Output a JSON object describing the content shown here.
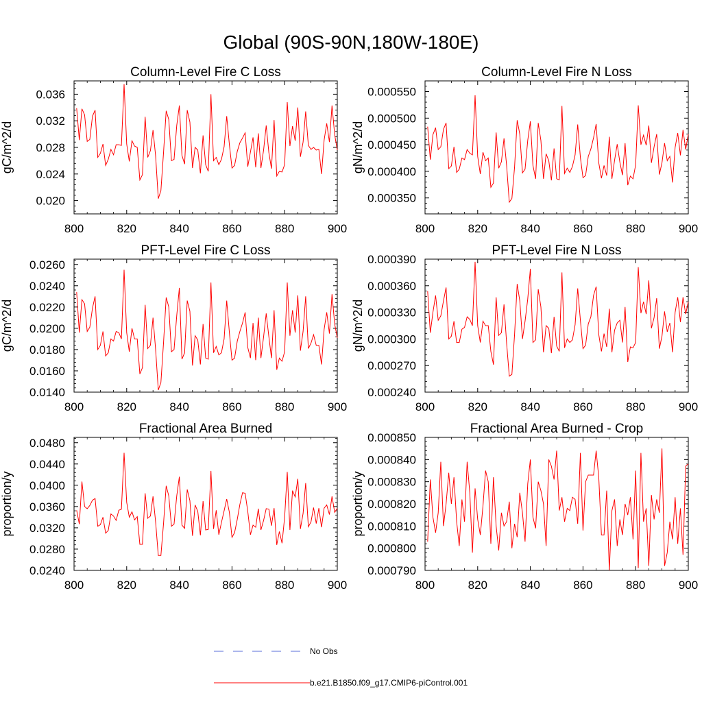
{
  "page_title": "Global (90S-90N,180W-180E)",
  "legend": {
    "items": [
      {
        "label": "No Obs",
        "color": "#5a6ed8",
        "style": "dashed"
      },
      {
        "label": "b.e21.B1850.f09_g17.CMIP6-piControl.001",
        "color": "#ff0000",
        "style": "solid"
      }
    ]
  },
  "chart_data": [
    {
      "type": "line",
      "title": "Column-Level Fire C Loss",
      "xlabel": "",
      "ylabel": "gC/m^2/d",
      "xlim": [
        800,
        900
      ],
      "ylim": [
        0.018,
        0.038
      ],
      "xticks": [
        800,
        820,
        840,
        860,
        880,
        900
      ],
      "xtick_labels": [
        "800",
        "820",
        "840",
        "860",
        "880",
        "900"
      ],
      "yticks": [
        0.02,
        0.024,
        0.028,
        0.032,
        0.036
      ],
      "ytick_labels": [
        "0.020",
        "0.024",
        "0.028",
        "0.032",
        "0.036"
      ],
      "series": [
        {
          "name": "b.e21.B1850.f09_g17.CMIP6-piControl.001",
          "color": "#ff0000",
          "x_start": 801,
          "values": [
            0.0339,
            0.0291,
            0.0338,
            0.0329,
            0.0289,
            0.0292,
            0.0327,
            0.0336,
            0.0265,
            0.0271,
            0.0285,
            0.0253,
            0.0262,
            0.0277,
            0.0269,
            0.0284,
            0.0284,
            0.0283,
            0.0375,
            0.0285,
            0.0259,
            0.029,
            0.0282,
            0.028,
            0.0231,
            0.0239,
            0.0326,
            0.0265,
            0.0275,
            0.0306,
            0.0267,
            0.0203,
            0.0215,
            0.0273,
            0.0335,
            0.0322,
            0.026,
            0.0262,
            0.0313,
            0.0343,
            0.0268,
            0.0255,
            0.0336,
            0.0318,
            0.0249,
            0.028,
            0.0276,
            0.0241,
            0.0298,
            0.0254,
            0.0244,
            0.036,
            0.026,
            0.0265,
            0.0254,
            0.0262,
            0.0281,
            0.0327,
            0.0284,
            0.0249,
            0.0253,
            0.0274,
            0.0287,
            0.0294,
            0.0302,
            0.0251,
            0.0273,
            0.0295,
            0.025,
            0.0301,
            0.0249,
            0.0276,
            0.0313,
            0.0272,
            0.0248,
            0.0321,
            0.0237,
            0.0244,
            0.0243,
            0.0254,
            0.0348,
            0.0282,
            0.0312,
            0.029,
            0.034,
            0.0266,
            0.0288,
            0.0334,
            0.0283,
            0.0277,
            0.028,
            0.0276,
            0.0277,
            0.024,
            0.0291,
            0.0316,
            0.0288,
            0.0343,
            0.0299,
            0.0276
          ]
        }
      ]
    },
    {
      "type": "line",
      "title": "Column-Level Fire N Loss",
      "xlabel": "",
      "ylabel": "gN/m^2/d",
      "xlim": [
        800,
        900
      ],
      "ylim": [
        0.00032,
        0.00057
      ],
      "xticks": [
        800,
        820,
        840,
        860,
        880,
        900
      ],
      "xtick_labels": [
        "800",
        "820",
        "840",
        "860",
        "880",
        "900"
      ],
      "yticks": [
        0.00035,
        0.0004,
        0.00045,
        0.0005,
        0.00055
      ],
      "ytick_labels": [
        "0.000350",
        "0.000400",
        "0.000450",
        "0.000500",
        "0.000550"
      ],
      "series": [
        {
          "name": "b.e21.B1850.f09_g17.CMIP6-piControl.001",
          "color": "#ff0000",
          "x_start": 801,
          "values": [
            0.000484,
            0.000422,
            0.000469,
            0.000482,
            0.000441,
            0.000446,
            0.000479,
            0.000491,
            0.000405,
            0.00041,
            0.000446,
            0.000398,
            0.000404,
            0.000425,
            0.000422,
            0.000441,
            0.000434,
            0.000431,
            0.000543,
            0.000428,
            0.000395,
            0.000436,
            0.00042,
            0.000425,
            0.00037,
            0.000378,
            0.000473,
            0.000406,
            0.000418,
            0.000462,
            0.000411,
            0.000342,
            0.000349,
            0.000408,
            0.000496,
            0.00047,
            0.000397,
            0.000404,
            0.000458,
            0.000494,
            0.000411,
            0.000386,
            0.000491,
            0.000458,
            0.000386,
            0.000433,
            0.00042,
            0.000383,
            0.000443,
            0.000386,
            0.000384,
            0.000523,
            0.000396,
            0.000406,
            0.000398,
            0.000409,
            0.000431,
            0.000488,
            0.000426,
            0.000388,
            0.000392,
            0.000428,
            0.000442,
            0.000463,
            0.000489,
            0.000416,
            0.000387,
            0.000411,
            0.000392,
            0.000465,
            0.000386,
            0.000421,
            0.000451,
            0.000417,
            0.000393,
            0.000453,
            0.000374,
            0.000391,
            0.000386,
            0.000412,
            0.000524,
            0.00045,
            0.000468,
            0.000449,
            0.000486,
            0.000416,
            0.000446,
            0.00047,
            0.000394,
            0.000416,
            0.000453,
            0.00042,
            0.000428,
            0.000379,
            0.000445,
            0.000472,
            0.00043,
            0.000478,
            0.000441,
            0.00047
          ]
        }
      ]
    },
    {
      "type": "line",
      "title": "PFT-Level Fire C Loss",
      "xlabel": "",
      "ylabel": "gC/m^2/d",
      "xlim": [
        800,
        900
      ],
      "ylim": [
        0.014,
        0.0265
      ],
      "xticks": [
        800,
        820,
        840,
        860,
        880,
        900
      ],
      "xtick_labels": [
        "800",
        "820",
        "840",
        "860",
        "880",
        "900"
      ],
      "yticks": [
        0.014,
        0.016,
        0.018,
        0.02,
        0.022,
        0.024,
        0.026
      ],
      "ytick_labels": [
        "0.0140",
        "0.0160",
        "0.0180",
        "0.0200",
        "0.0220",
        "0.0240",
        "0.0260"
      ],
      "series": [
        {
          "name": "b.e21.B1850.f09_g17.CMIP6-piControl.001",
          "color": "#ff0000",
          "x_start": 801,
          "values": [
            0.0234,
            0.0196,
            0.0227,
            0.0223,
            0.0197,
            0.0201,
            0.0219,
            0.023,
            0.018,
            0.0184,
            0.0197,
            0.0174,
            0.0177,
            0.019,
            0.0188,
            0.0197,
            0.0196,
            0.019,
            0.0255,
            0.0196,
            0.0178,
            0.02,
            0.019,
            0.019,
            0.0157,
            0.0163,
            0.0222,
            0.0181,
            0.0184,
            0.021,
            0.018,
            0.0142,
            0.0149,
            0.0187,
            0.0229,
            0.022,
            0.0178,
            0.018,
            0.0212,
            0.0238,
            0.0171,
            0.0177,
            0.0226,
            0.0216,
            0.0165,
            0.0193,
            0.0189,
            0.0166,
            0.0204,
            0.0172,
            0.0171,
            0.0243,
            0.0177,
            0.0183,
            0.0175,
            0.0177,
            0.019,
            0.0226,
            0.0196,
            0.017,
            0.0172,
            0.0188,
            0.0197,
            0.0205,
            0.0215,
            0.0182,
            0.0172,
            0.0205,
            0.017,
            0.021,
            0.0172,
            0.0192,
            0.0214,
            0.0192,
            0.0172,
            0.0217,
            0.0161,
            0.0172,
            0.0169,
            0.0178,
            0.0243,
            0.0193,
            0.0217,
            0.0196,
            0.0231,
            0.0179,
            0.0197,
            0.023,
            0.0181,
            0.0186,
            0.0194,
            0.0184,
            0.0184,
            0.0166,
            0.0199,
            0.0215,
            0.0195,
            0.0232,
            0.0204,
            0.0191
          ]
        }
      ]
    },
    {
      "type": "line",
      "title": "PFT-Level Fire N Loss",
      "xlabel": "",
      "ylabel": "gN/m^2/d",
      "xlim": [
        800,
        900
      ],
      "ylim": [
        0.00024,
        0.00039
      ],
      "xticks": [
        800,
        820,
        840,
        860,
        880,
        900
      ],
      "xtick_labels": [
        "800",
        "820",
        "840",
        "860",
        "880",
        "900"
      ],
      "yticks": [
        0.00024,
        0.00027,
        0.0003,
        0.00033,
        0.00036,
        0.00039
      ],
      "ytick_labels": [
        "0.000240",
        "0.000270",
        "0.000300",
        "0.000330",
        "0.000360",
        "0.000390"
      ],
      "series": [
        {
          "name": "b.e21.B1850.f09_g17.CMIP6-piControl.001",
          "color": "#ff0000",
          "x_start": 801,
          "values": [
            0.000354,
            0.000307,
            0.00033,
            0.000349,
            0.000321,
            0.000326,
            0.000343,
            0.000358,
            0.0003,
            0.000303,
            0.00032,
            0.000296,
            0.000296,
            0.000311,
            0.000313,
            0.000325,
            0.000322,
            0.000315,
            0.000387,
            0.000315,
            0.000296,
            0.00032,
            0.000315,
            0.000315,
            0.000286,
            0.000271,
            0.000347,
            0.000304,
            0.000307,
            0.000339,
            0.000295,
            0.000258,
            0.00026,
            0.000305,
            0.000362,
            0.000343,
            0.0003,
            0.00032,
            0.000345,
            0.000379,
            0.000296,
            0.000299,
            0.000356,
            0.000336,
            0.000285,
            0.000315,
            0.000312,
            0.000284,
            0.000325,
            0.000292,
            0.000286,
            0.000375,
            0.00029,
            0.0003,
            0.000296,
            0.000299,
            0.000316,
            0.000357,
            0.000321,
            0.000289,
            0.000293,
            0.000317,
            0.000325,
            0.000349,
            0.000359,
            0.000305,
            0.000286,
            0.000306,
            0.000291,
            0.000334,
            0.000285,
            0.00031,
            0.000318,
            0.000321,
            0.000296,
            0.000336,
            0.000274,
            0.000291,
            0.00029,
            0.000296,
            0.000381,
            0.000329,
            0.000342,
            0.000328,
            0.000366,
            0.000312,
            0.000324,
            0.000346,
            0.000289,
            0.000303,
            0.000331,
            0.000308,
            0.000318,
            0.000285,
            0.00033,
            0.000347,
            0.000319,
            0.000347,
            0.000328,
            0.000342
          ]
        }
      ]
    },
    {
      "type": "line",
      "title": "Fractional Area Burned",
      "xlabel": "",
      "ylabel": "proportion/y",
      "xlim": [
        800,
        900
      ],
      "ylim": [
        0.024,
        0.049
      ],
      "xticks": [
        800,
        820,
        840,
        860,
        880,
        900
      ],
      "xtick_labels": [
        "800",
        "820",
        "840",
        "860",
        "880",
        "900"
      ],
      "yticks": [
        0.024,
        0.028,
        0.032,
        0.036,
        0.04,
        0.044,
        0.048
      ],
      "ytick_labels": [
        "0.0240",
        "0.0280",
        "0.0320",
        "0.0360",
        "0.0400",
        "0.0440",
        "0.0480"
      ],
      "series": [
        {
          "name": "b.e21.B1850.f09_g17.CMIP6-piControl.001",
          "color": "#ff0000",
          "x_start": 801,
          "values": [
            0.0353,
            0.0327,
            0.0407,
            0.036,
            0.0356,
            0.0362,
            0.0372,
            0.0375,
            0.0323,
            0.0326,
            0.034,
            0.031,
            0.0315,
            0.0346,
            0.0342,
            0.0334,
            0.0353,
            0.0355,
            0.0461,
            0.0368,
            0.034,
            0.035,
            0.0335,
            0.0341,
            0.0289,
            0.0289,
            0.0385,
            0.0338,
            0.0342,
            0.0379,
            0.0331,
            0.0268,
            0.0268,
            0.0329,
            0.0399,
            0.038,
            0.0323,
            0.0327,
            0.038,
            0.0416,
            0.0325,
            0.0319,
            0.0392,
            0.0371,
            0.0305,
            0.0363,
            0.0351,
            0.0306,
            0.037,
            0.0316,
            0.0317,
            0.0427,
            0.0318,
            0.0353,
            0.0307,
            0.033,
            0.0352,
            0.0374,
            0.0349,
            0.0302,
            0.0311,
            0.0336,
            0.0364,
            0.0386,
            0.0385,
            0.0351,
            0.0307,
            0.0325,
            0.0321,
            0.0356,
            0.0316,
            0.0334,
            0.0356,
            0.0355,
            0.0324,
            0.0357,
            0.0288,
            0.0313,
            0.0291,
            0.034,
            0.0425,
            0.0316,
            0.039,
            0.0378,
            0.0412,
            0.0318,
            0.0347,
            0.0404,
            0.0322,
            0.0331,
            0.0358,
            0.0328,
            0.0357,
            0.0321,
            0.0357,
            0.0363,
            0.0345,
            0.0379,
            0.0349,
            0.0357
          ]
        }
      ]
    },
    {
      "type": "line",
      "title": "Fractional Area Burned - Crop",
      "xlabel": "",
      "ylabel": "proportion/y",
      "xlim": [
        800,
        900
      ],
      "ylim": [
        0.00079,
        0.00085
      ],
      "xticks": [
        800,
        820,
        840,
        860,
        880,
        900
      ],
      "xtick_labels": [
        "800",
        "820",
        "840",
        "860",
        "880",
        "900"
      ],
      "yticks": [
        0.00079,
        0.0008,
        0.00081,
        0.00082,
        0.00083,
        0.00084,
        0.00085
      ],
      "ytick_labels": [
        "0.000790",
        "0.000800",
        "0.000810",
        "0.000820",
        "0.000830",
        "0.000840",
        "0.000850"
      ],
      "series": [
        {
          "name": "b.e21.B1850.f09_g17.CMIP6-piControl.001",
          "color": "#ff0000",
          "x_start": 801,
          "values": [
            0.000803,
            0.000831,
            0.000814,
            0.000807,
            0.000816,
            0.000839,
            0.00081,
            0.00082,
            0.000834,
            0.00082,
            0.000832,
            0.000812,
            0.000801,
            0.000822,
            0.000812,
            0.000839,
            0.000825,
            0.000798,
            0.000827,
            0.000813,
            0.000806,
            0.000819,
            0.000835,
            0.00083,
            0.000802,
            0.000832,
            0.00081,
            0.000799,
            0.000816,
            0.00081,
            0.000812,
            0.000821,
            0.0008,
            0.000811,
            0.000805,
            0.000825,
            0.000816,
            0.000803,
            0.000829,
            0.00084,
            0.000814,
            0.000809,
            0.00083,
            0.000826,
            0.00082,
            0.000801,
            0.00084,
            0.000837,
            0.000831,
            0.000844,
            0.000817,
            0.000823,
            0.000812,
            0.000818,
            0.000817,
            0.000823,
            0.000822,
            0.000811,
            0.000843,
            0.000808,
            0.00083,
            0.000833,
            0.000833,
            0.000833,
            0.000844,
            0.000832,
            0.000806,
            0.000806,
            0.000826,
            0.00079,
            0.000817,
            0.000822,
            0.000801,
            0.000813,
            0.000806,
            0.00082,
            0.000815,
            0.000823,
            0.000804,
            0.000835,
            0.000791,
            0.000843,
            0.000812,
            0.000818,
            0.000792,
            0.000824,
            0.000813,
            0.000822,
            0.000816,
            0.000845,
            0.000792,
            0.000798,
            0.000812,
            0.000804,
            0.000823,
            0.000802,
            0.000818,
            0.000797,
            0.000837,
            0.000838
          ]
        }
      ]
    }
  ]
}
